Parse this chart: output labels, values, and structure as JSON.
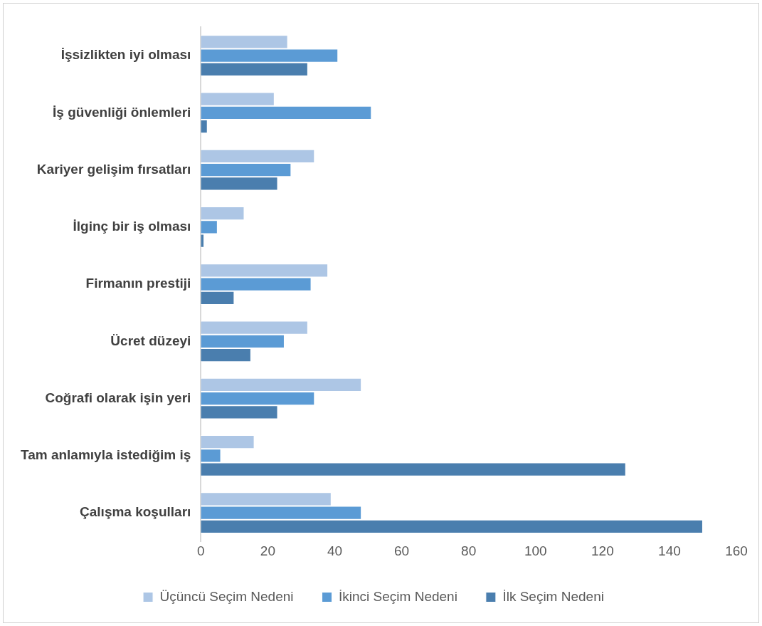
{
  "chart_data": {
    "type": "bar",
    "orientation": "horizontal",
    "categories": [
      "İşsizlikten iyi olması",
      "İş güvenliği önlemleri",
      "Kariyer gelişim fırsatları",
      "İlginç bir iş olması",
      "Firmanın prestiji",
      "Ücret düzeyi",
      "Coğrafi olarak işin yeri",
      "Tam anlamıyla istediğim iş",
      "Çalışma koşulları"
    ],
    "series": [
      {
        "name": "Üçüncü Seçim Nedeni",
        "color": "#adc6e5",
        "values": [
          26,
          22,
          34,
          13,
          38,
          32,
          48,
          16,
          39
        ]
      },
      {
        "name": "İkinci Seçim Nedeni",
        "color": "#5b9bd5",
        "values": [
          41,
          51,
          27,
          5,
          33,
          25,
          34,
          6,
          48
        ]
      },
      {
        "name": "İlk Seçim Nedeni",
        "color": "#4a7eae",
        "values": [
          32,
          2,
          23,
          1,
          10,
          15,
          23,
          127,
          150
        ]
      }
    ],
    "xlim": [
      0,
      160
    ],
    "xticks": [
      0,
      20,
      40,
      60,
      80,
      100,
      120,
      140,
      160
    ],
    "grid": false,
    "legend": "bottom"
  }
}
